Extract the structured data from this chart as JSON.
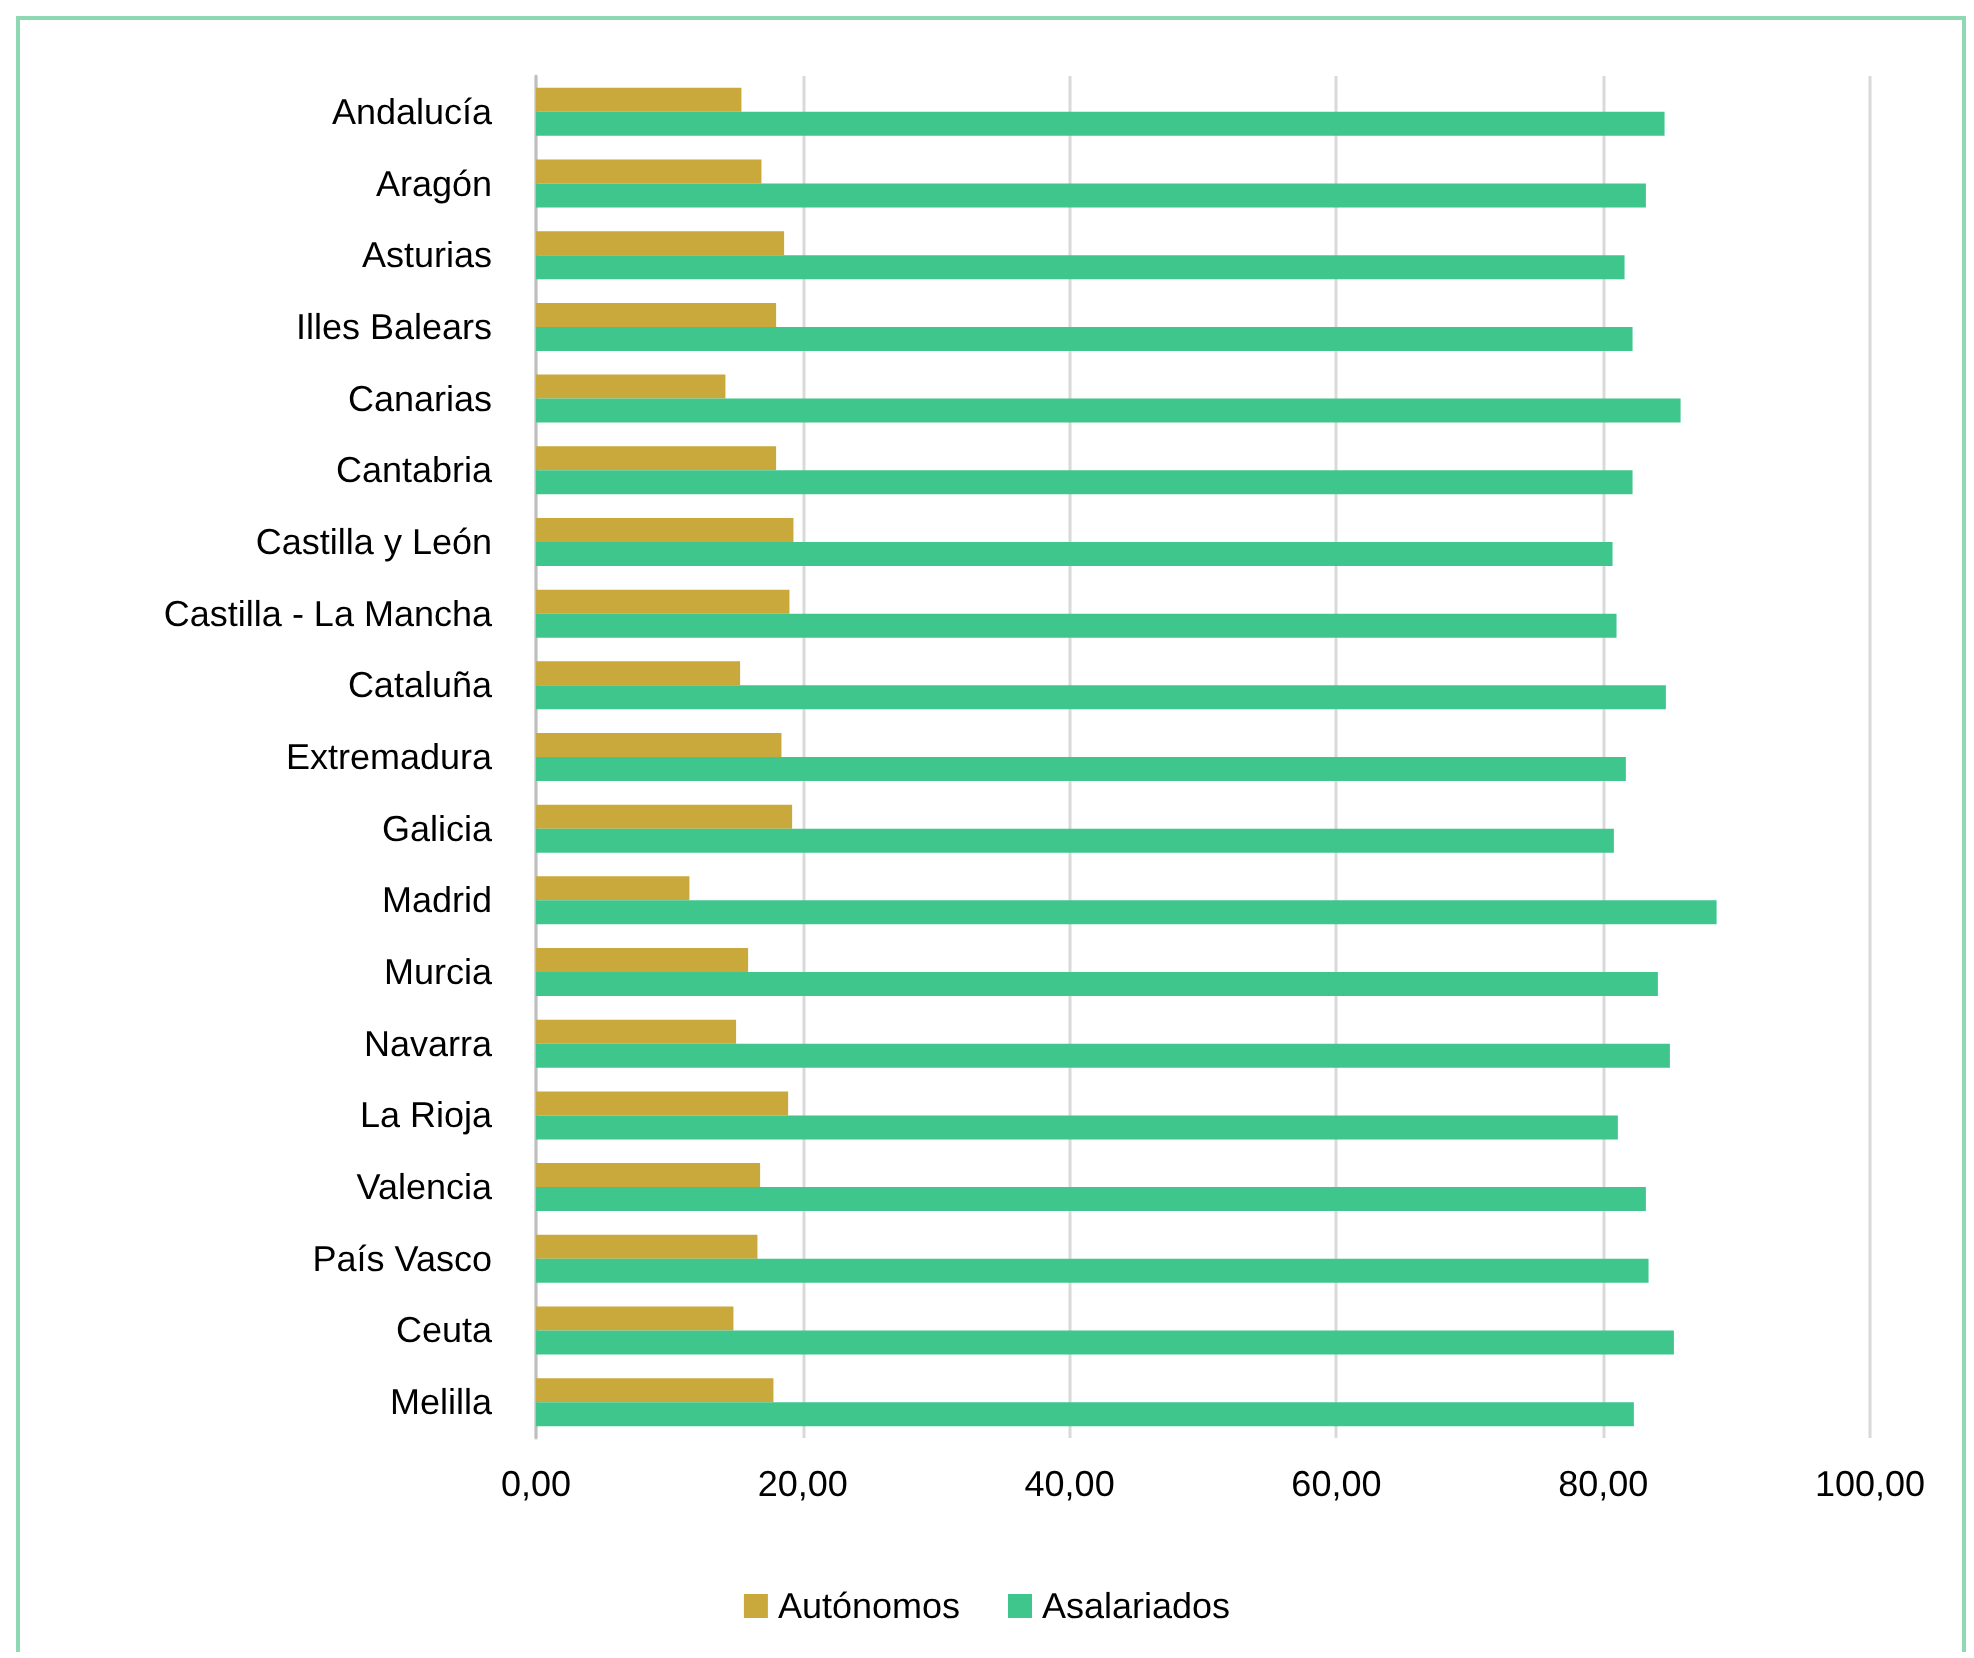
{
  "chart_data": {
    "type": "bar",
    "orientation": "horizontal",
    "categories": [
      "Andalucía",
      "Aragón",
      "Asturias",
      "Illes Balears",
      "Canarias",
      "Cantabria",
      "Castilla y León",
      "Castilla - La Mancha",
      "Cataluña",
      "Extremadura",
      "Galicia",
      "Madrid",
      "Murcia",
      "Navarra",
      "La Rioja",
      "Valencia",
      "País Vasco",
      "Ceuta",
      "Melilla"
    ],
    "series": [
      {
        "name": "Autónomos",
        "color": "#c9a83c",
        "values": [
          15.4,
          16.9,
          18.6,
          18.0,
          14.2,
          18.0,
          19.3,
          19.0,
          15.3,
          18.4,
          19.2,
          11.5,
          15.9,
          15.0,
          18.9,
          16.8,
          16.6,
          14.8,
          17.8
        ]
      },
      {
        "name": "Asalariados",
        "color": "#3fc68c",
        "values": [
          84.6,
          83.2,
          81.6,
          82.2,
          85.8,
          82.2,
          80.7,
          81.0,
          84.7,
          81.7,
          80.8,
          88.5,
          84.1,
          85.0,
          81.1,
          83.2,
          83.4,
          85.3,
          82.3
        ]
      }
    ],
    "xlim": [
      0,
      100
    ],
    "xticks": [
      {
        "value": 0,
        "label": "0,00"
      },
      {
        "value": 20,
        "label": "20,00"
      },
      {
        "value": 40,
        "label": "40,00"
      },
      {
        "value": 60,
        "label": "60,00"
      },
      {
        "value": 80,
        "label": "80,00"
      },
      {
        "value": 100,
        "label": "100,00"
      }
    ],
    "grid": "x",
    "legend": "bottom"
  }
}
